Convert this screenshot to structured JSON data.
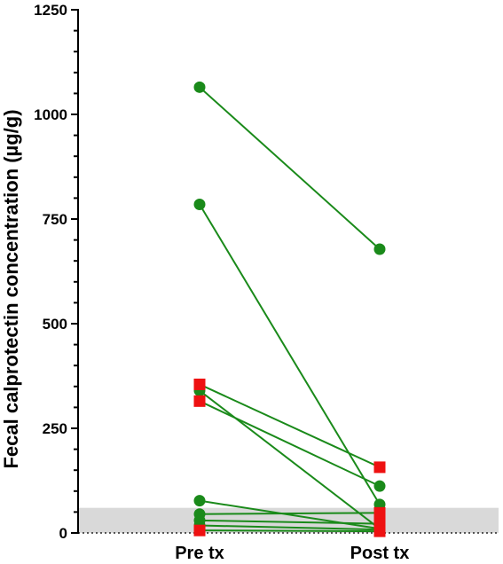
{
  "chart_data": {
    "type": "line",
    "categories": [
      "Pre tx",
      "Post tx"
    ],
    "ylabel": "Fecal calprotectin concentration (µg/g)",
    "xlabel": "",
    "title": "",
    "ylim": [
      0,
      1250
    ],
    "yticks": [
      0,
      250,
      500,
      750,
      1000,
      1250
    ],
    "minor_ytick_step": 50,
    "reference_band": {
      "from": 0,
      "to": 60,
      "color": "#d9d9d9"
    },
    "reference_line": {
      "y": 0,
      "style": "dotted"
    },
    "line_color": "#1a8a1a",
    "pairs": [
      {
        "marker": "circle",
        "color": "#1a8a1a",
        "values": [
          1065,
          678
        ]
      },
      {
        "marker": "circle",
        "color": "#1a8a1a",
        "values": [
          785,
          68
        ]
      },
      {
        "marker": "square",
        "color": "#ee1111",
        "values": [
          355,
          157
        ]
      },
      {
        "marker": "circle",
        "color": "#1a8a1a",
        "values": [
          340,
          10
        ]
      },
      {
        "marker": "square",
        "color": "#ee1111",
        "values": [
          315,
          112
        ]
      },
      {
        "marker": "circle",
        "color": "#1a8a1a",
        "values": [
          77,
          10
        ]
      },
      {
        "marker": "circle",
        "color": "#1a8a1a",
        "values": [
          45,
          48
        ]
      },
      {
        "marker": "circle",
        "color": "#1a8a1a",
        "values": [
          30,
          22
        ]
      },
      {
        "marker": "circle",
        "color": "#1a8a1a",
        "values": [
          18,
          8
        ]
      },
      {
        "marker": "square",
        "color": "#ee1111",
        "values": [
          6,
          4
        ]
      }
    ],
    "post_markers_override": [
      {
        "pair": 2,
        "marker": "square",
        "color": "#ee1111"
      },
      {
        "pair": 4,
        "marker": "circle",
        "color": "#1a8a1a"
      },
      {
        "pair": 6,
        "marker": "square",
        "color": "#ee1111"
      },
      {
        "pair": 7,
        "marker": "square",
        "color": "#ee1111"
      }
    ]
  }
}
